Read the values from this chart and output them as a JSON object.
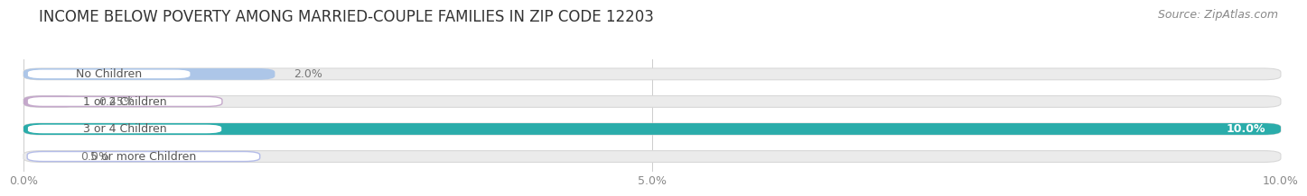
{
  "title": "INCOME BELOW POVERTY AMONG MARRIED-COUPLE FAMILIES IN ZIP CODE 12203",
  "source": "Source: ZipAtlas.com",
  "categories": [
    "No Children",
    "1 or 2 Children",
    "3 or 4 Children",
    "5 or more Children"
  ],
  "values": [
    2.0,
    0.45,
    10.0,
    0.0
  ],
  "bar_colors": [
    "#adc6e8",
    "#c4a8cb",
    "#2aacaa",
    "#b4bce8"
  ],
  "label_colors": [
    "#adc6e8",
    "#c4a8cb",
    "#2aacaa",
    "#b4bce8"
  ],
  "value_labels": [
    "2.0%",
    "0.45%",
    "10.0%",
    "0.0%"
  ],
  "xlim": [
    0,
    10.0
  ],
  "xticks": [
    0.0,
    5.0,
    10.0
  ],
  "xtick_labels": [
    "0.0%",
    "5.0%",
    "10.0%"
  ],
  "background_color": "#ffffff",
  "bar_background_color": "#ebebeb",
  "title_fontsize": 12,
  "source_fontsize": 9,
  "label_fontsize": 9,
  "value_fontsize": 9,
  "tick_fontsize": 9
}
